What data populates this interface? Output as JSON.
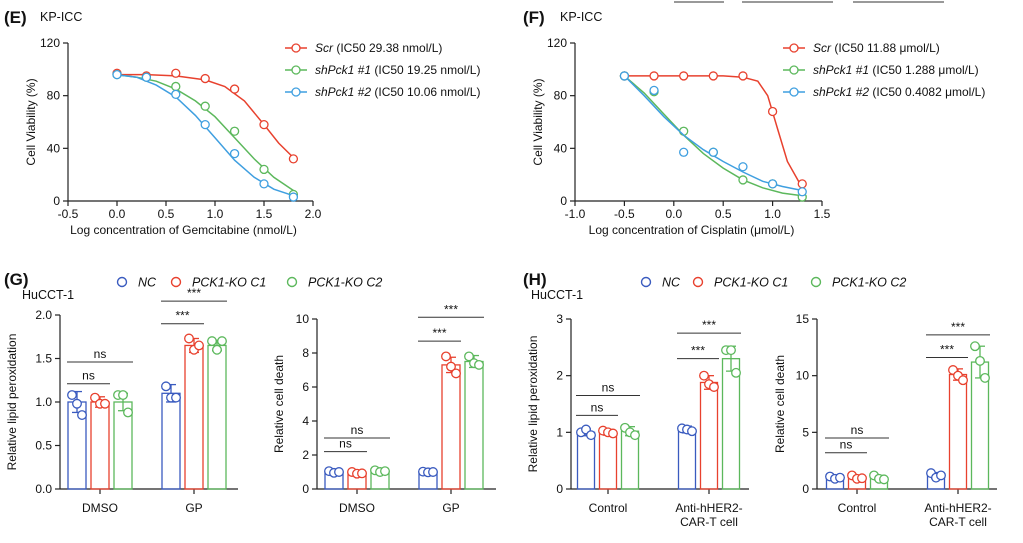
{
  "colors": {
    "blue": "#3a5bbf",
    "red": "#e8412e",
    "green": "#5cb85c",
    "sky": "#3f9fe0"
  },
  "chart_data": [
    {
      "panel": "(E)",
      "subtitle": "KP-ICC",
      "type": "scatter",
      "xlabel": "Log concentration of Gemcitabine (nmol/L)",
      "ylabel": "Cell Viability (%)",
      "xlim": [
        -0.5,
        2.0
      ],
      "ylim": [
        0,
        120
      ],
      "xticks": [
        "-0.5",
        "0.0",
        "0.5",
        "1.0",
        "1.5",
        "2.0"
      ],
      "yticks": [
        "0",
        "40",
        "80",
        "120"
      ],
      "series": [
        {
          "gene": "Scr",
          "ic50": " (IC50 29.38 nmol/L)",
          "color": "red",
          "x": [
            0.0,
            0.3,
            0.6,
            0.9,
            1.2,
            1.5,
            1.8
          ],
          "y": [
            97,
            95,
            97,
            93,
            85,
            58,
            32
          ],
          "fit_x": [
            -0.02,
            0.3,
            0.6,
            0.9,
            1.1,
            1.3,
            1.5,
            1.65,
            1.8
          ],
          "fit_y": [
            96,
            96,
            95,
            92,
            87,
            76,
            58,
            44,
            33
          ]
        },
        {
          "gene": "shPck1 #1",
          "ic50": " (IC50 19.25 nmol/L)",
          "color": "green",
          "x": [
            0.0,
            0.3,
            0.6,
            0.9,
            1.2,
            1.5,
            1.8
          ],
          "y": [
            96,
            94,
            87,
            72,
            53,
            24,
            5
          ],
          "fit_x": [
            -0.02,
            0.2,
            0.4,
            0.6,
            0.8,
            1.0,
            1.2,
            1.4,
            1.6,
            1.8
          ],
          "fit_y": [
            96,
            94,
            91,
            85,
            76,
            64,
            48,
            32,
            18,
            8
          ]
        },
        {
          "gene": "shPck1 #2",
          "ic50": " (IC50 10.06 nmol/L)",
          "color": "sky",
          "x": [
            0.0,
            0.3,
            0.6,
            0.9,
            1.2,
            1.5,
            1.8
          ],
          "y": [
            96,
            94,
            81,
            58,
            36,
            13,
            3
          ],
          "fit_x": [
            -0.02,
            0.2,
            0.4,
            0.6,
            0.8,
            1.0,
            1.2,
            1.4,
            1.6,
            1.8
          ],
          "fit_y": [
            96,
            94,
            88,
            79,
            65,
            48,
            31,
            18,
            9,
            4
          ]
        }
      ]
    },
    {
      "panel": "(F)",
      "subtitle": "KP-ICC",
      "type": "scatter",
      "xlabel": "Log concentration of Cisplatin (μmol/L)",
      "ylabel": "Cell Viability (%)",
      "xlim": [
        -1.0,
        1.5
      ],
      "ylim": [
        0,
        120
      ],
      "xticks": [
        "-1.0",
        "-0.5",
        "0.0",
        "0.5",
        "1.0",
        "1.5"
      ],
      "yticks": [
        "0",
        "40",
        "80",
        "120"
      ],
      "series": [
        {
          "gene": "Scr",
          "ic50": " (IC50 11.88 μmol/L)",
          "color": "red",
          "x": [
            -0.5,
            -0.2,
            0.1,
            0.4,
            0.7,
            1.0,
            1.3
          ],
          "y": [
            95,
            95,
            95,
            95,
            95,
            68,
            13
          ],
          "fit_x": [
            -0.5,
            0.0,
            0.5,
            0.7,
            0.85,
            0.95,
            1.05,
            1.15,
            1.3
          ],
          "fit_y": [
            95,
            95,
            95,
            94,
            91,
            80,
            55,
            30,
            10
          ]
        },
        {
          "gene": "shPck1 #1",
          "ic50": " (IC50 1.288 μmol/L)",
          "color": "green",
          "x": [
            -0.5,
            -0.2,
            0.1,
            0.4,
            0.7,
            1.0,
            1.3
          ],
          "y": [
            95,
            83,
            53,
            37,
            16,
            13,
            3
          ],
          "fit_x": [
            -0.5,
            -0.3,
            -0.1,
            0.1,
            0.3,
            0.5,
            0.7,
            0.9,
            1.1,
            1.3
          ],
          "fit_y": [
            95,
            82,
            66,
            50,
            36,
            25,
            16,
            10,
            6,
            4
          ]
        },
        {
          "gene": "shPck1 #2",
          "ic50": " (IC50 0.4082 μmol/L)",
          "color": "sky",
          "x": [
            -0.5,
            -0.2,
            0.1,
            0.4,
            0.7,
            1.0,
            1.3
          ],
          "y": [
            95,
            84,
            37,
            37,
            26,
            13,
            7
          ],
          "fit_x": [
            -0.5,
            -0.3,
            -0.1,
            0.1,
            0.3,
            0.5,
            0.7,
            0.9,
            1.1,
            1.3
          ],
          "fit_y": [
            95,
            80,
            64,
            50,
            39,
            30,
            22,
            15,
            11,
            8
          ]
        }
      ]
    },
    {
      "panel": "(G)",
      "subtitle": "HuCCT-1",
      "type": "bar",
      "legend": [
        "NC",
        "PCK1-KO C1",
        "PCK1-KO C2"
      ],
      "plots": [
        {
          "ylabel": "Relative  lipid peroxidation",
          "ylim": [
            0,
            2.0
          ],
          "yticks": [
            "0.0",
            "0.5",
            "1.0",
            "1.5",
            "2.0"
          ],
          "categories": [
            "DMSO",
            "GP"
          ],
          "series": [
            {
              "name": "NC",
              "color": "blue",
              "means": [
                1.0,
                1.1
              ],
              "sd": [
                0.12,
                0.1
              ],
              "points": [
                [
                  1.08,
                  0.98,
                  0.85
                ],
                [
                  1.18,
                  1.05,
                  1.05
                ]
              ]
            },
            {
              "name": "PCK1-KO C1",
              "color": "red",
              "means": [
                1.0,
                1.65
              ],
              "sd": [
                0.06,
                0.08
              ],
              "points": [
                [
                  1.05,
                  0.98,
                  0.98
                ],
                [
                  1.73,
                  1.6,
                  1.65
                ]
              ]
            },
            {
              "name": "PCK1-KO C2",
              "color": "green",
              "means": [
                1.0,
                1.65
              ],
              "sd": [
                0.1,
                0.06
              ],
              "points": [
                [
                  1.08,
                  1.08,
                  0.88
                ],
                [
                  1.7,
                  1.6,
                  1.7
                ]
              ]
            }
          ],
          "annotations": [
            {
              "text": "ns",
              "cat1": 0,
              "s1": 0,
              "cat2": 0,
              "s2": 1,
              "y": 1.21
            },
            {
              "text": "ns",
              "cat1": 0,
              "s1": 0,
              "cat2": 0,
              "s2": 2,
              "y": 1.46
            },
            {
              "text": "***",
              "cat1": 1,
              "s1": 0,
              "cat2": 1,
              "s2": 1,
              "y": 1.9
            },
            {
              "text": "***",
              "cat1": 1,
              "s1": 0,
              "cat2": 1,
              "s2": 2,
              "y": 2.16
            }
          ]
        },
        {
          "ylabel": "Relative cell death",
          "ylim": [
            0,
            10
          ],
          "yticks": [
            "0",
            "2",
            "4",
            "6",
            "8",
            "10"
          ],
          "categories": [
            "DMSO",
            "GP"
          ],
          "series": [
            {
              "name": "NC",
              "color": "blue",
              "means": [
                1.0,
                1.0
              ],
              "sd": [
                0.12,
                0.1
              ],
              "points": [
                [
                  1.05,
                  0.95,
                  1.0
                ],
                [
                  1.02,
                  0.98,
                  1.0
                ]
              ]
            },
            {
              "name": "PCK1-KO C1",
              "color": "red",
              "means": [
                0.95,
                7.3
              ],
              "sd": [
                0.08,
                0.45
              ],
              "points": [
                [
                  1.0,
                  0.9,
                  0.92
                ],
                [
                  7.8,
                  7.2,
                  6.8
                ]
              ]
            },
            {
              "name": "PCK1-KO C2",
              "color": "green",
              "means": [
                1.05,
                7.5
              ],
              "sd": [
                0.1,
                0.35
              ],
              "points": [
                [
                  1.1,
                  1.0,
                  1.05
                ],
                [
                  7.8,
                  7.4,
                  7.3
                ]
              ]
            }
          ],
          "annotations": [
            {
              "text": "ns",
              "cat1": 0,
              "s1": 0,
              "cat2": 0,
              "s2": 1,
              "y": 2.2
            },
            {
              "text": "ns",
              "cat1": 0,
              "s1": 0,
              "cat2": 0,
              "s2": 2,
              "y": 3.0
            },
            {
              "text": "***",
              "cat1": 1,
              "s1": 0,
              "cat2": 1,
              "s2": 1,
              "y": 8.7
            },
            {
              "text": "***",
              "cat1": 1,
              "s1": 0,
              "cat2": 1,
              "s2": 2,
              "y": 10.1
            }
          ]
        }
      ]
    },
    {
      "panel": "(H)",
      "subtitle": "HuCCT-1",
      "type": "bar",
      "legend": [
        "NC",
        "PCK1-KO C1",
        "PCK1-KO C2"
      ],
      "plots": [
        {
          "ylabel": "Relative  lipid peroxidation",
          "ylim": [
            0,
            3
          ],
          "yticks": [
            "0",
            "1",
            "2",
            "3"
          ],
          "categories": [
            "Control",
            "Anti-hHER2-\nCAR-T cell"
          ],
          "series": [
            {
              "name": "NC",
              "color": "blue",
              "means": [
                1.0,
                1.05
              ],
              "sd": [
                0.06,
                0.06
              ],
              "points": [
                [
                  1.0,
                  1.05,
                  0.95
                ],
                [
                  1.07,
                  1.05,
                  1.02
                ]
              ]
            },
            {
              "name": "PCK1-KO C1",
              "color": "red",
              "means": [
                1.0,
                1.88
              ],
              "sd": [
                0.05,
                0.12
              ],
              "points": [
                [
                  1.03,
                  1.0,
                  0.98
                ],
                [
                  2.0,
                  1.85,
                  1.8
                ]
              ]
            },
            {
              "name": "PCK1-KO C2",
              "color": "green",
              "means": [
                1.02,
                2.3
              ],
              "sd": [
                0.08,
                0.22
              ],
              "points": [
                [
                  1.08,
                  1.0,
                  0.95
                ],
                [
                  2.45,
                  2.45,
                  2.05
                ]
              ]
            }
          ],
          "annotations": [
            {
              "text": "ns",
              "cat1": 0,
              "s1": 0,
              "cat2": 0,
              "s2": 1,
              "y": 1.3
            },
            {
              "text": "ns",
              "cat1": 0,
              "s1": 0,
              "cat2": 0,
              "s2": 2,
              "y": 1.65
            },
            {
              "text": "***",
              "cat1": 1,
              "s1": 0,
              "cat2": 1,
              "s2": 1,
              "y": 2.3
            },
            {
              "text": "***",
              "cat1": 1,
              "s1": 0,
              "cat2": 1,
              "s2": 2,
              "y": 2.75
            }
          ]
        },
        {
          "ylabel": "Relative cell death",
          "ylim": [
            0,
            15
          ],
          "yticks": [
            "0",
            "5",
            "10",
            "15"
          ],
          "categories": [
            "Control",
            "Anti-hHER2-\nCAR-T cell"
          ],
          "series": [
            {
              "name": "NC",
              "color": "blue",
              "means": [
                1.0,
                1.2
              ],
              "sd": [
                0.15,
                0.25
              ],
              "points": [
                [
                  1.1,
                  0.9,
                  1.0
                ],
                [
                  1.4,
                  1.0,
                  1.2
                ]
              ]
            },
            {
              "name": "PCK1-KO C1",
              "color": "red",
              "means": [
                1.0,
                10.1
              ],
              "sd": [
                0.15,
                0.5
              ],
              "points": [
                [
                  1.2,
                  0.9,
                  0.95
                ],
                [
                  10.5,
                  10.0,
                  9.6
                ]
              ]
            },
            {
              "name": "PCK1-KO C2",
              "color": "green",
              "means": [
                1.0,
                11.2
              ],
              "sd": [
                0.2,
                1.4
              ],
              "points": [
                [
                  1.2,
                  0.9,
                  0.85
                ],
                [
                  12.6,
                  11.3,
                  9.8
                ]
              ]
            }
          ],
          "annotations": [
            {
              "text": "ns",
              "cat1": 0,
              "s1": 0,
              "cat2": 0,
              "s2": 1,
              "y": 3.2
            },
            {
              "text": "ns",
              "cat1": 0,
              "s1": 0,
              "cat2": 0,
              "s2": 2,
              "y": 4.5
            },
            {
              "text": "***",
              "cat1": 1,
              "s1": 0,
              "cat2": 1,
              "s2": 1,
              "y": 11.6
            },
            {
              "text": "***",
              "cat1": 1,
              "s1": 0,
              "cat2": 1,
              "s2": 2,
              "y": 13.6
            }
          ]
        }
      ]
    }
  ]
}
